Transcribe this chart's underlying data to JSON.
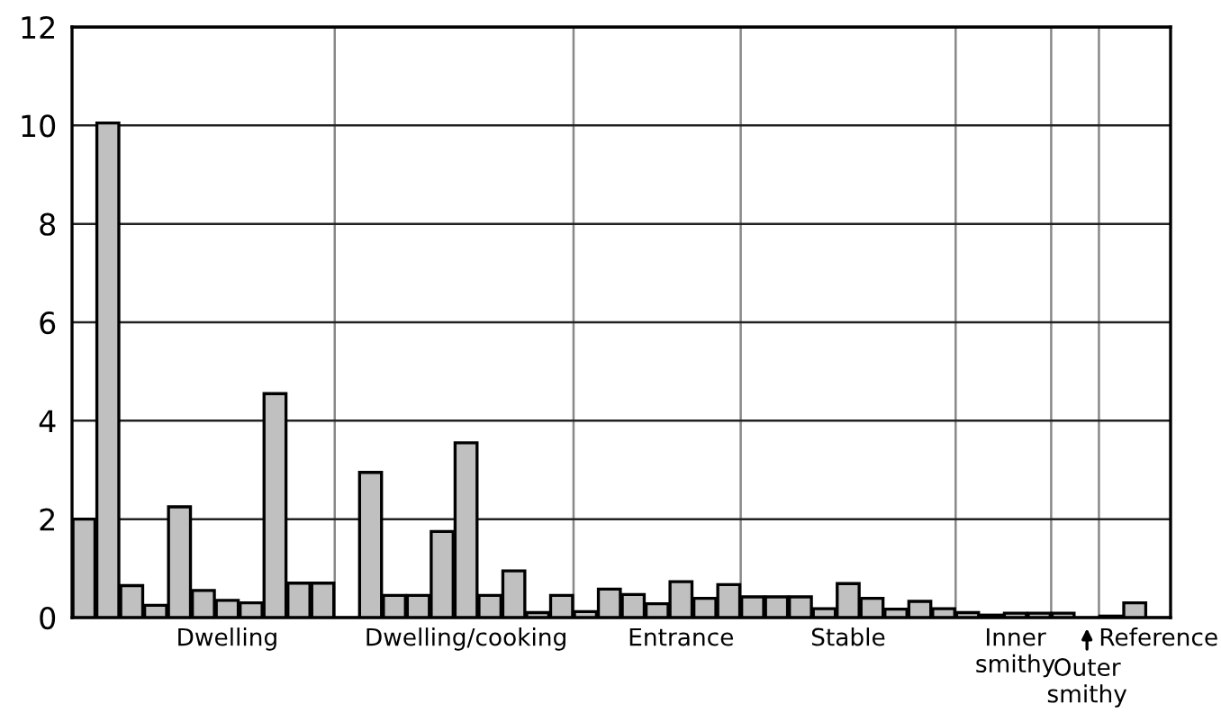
{
  "chart_data": {
    "type": "bar",
    "categories": [
      null,
      null,
      null,
      null,
      null,
      null,
      "Dwelling",
      null,
      null,
      null,
      null,
      null,
      null,
      null,
      null,
      null,
      "Dwelling/cooking",
      null,
      null,
      null,
      null,
      null,
      null,
      null,
      null,
      "Entrance",
      null,
      null,
      null,
      null,
      null,
      null,
      "Stable",
      null,
      null,
      null,
      null,
      null,
      null,
      "Inner\nsmithy",
      null,
      null,
      null,
      null,
      null,
      "Reference"
    ],
    "annotations": [
      "Outer\nsmithy"
    ],
    "values": [
      2.0,
      10.05,
      0.65,
      0.25,
      2.25,
      0.55,
      0.35,
      0.3,
      4.55,
      0.7,
      0.7,
      null,
      2.95,
      0.45,
      0.45,
      1.75,
      3.55,
      0.45,
      0.95,
      0.1,
      0.45,
      0.12,
      0.58,
      0.47,
      0.28,
      0.73,
      0.39,
      0.67,
      0.42,
      0.42,
      0.42,
      0.18,
      0.69,
      0.39,
      0.17,
      0.33,
      0.18,
      0.1,
      0.05,
      0.09,
      0.09,
      0.09,
      null,
      0.03,
      0.3,
      null
    ],
    "color": "#c0c0c0",
    "ylim": [
      0,
      12
    ],
    "yticks": [
      0,
      2,
      4,
      6,
      8,
      10,
      12
    ],
    "grid": "y"
  }
}
